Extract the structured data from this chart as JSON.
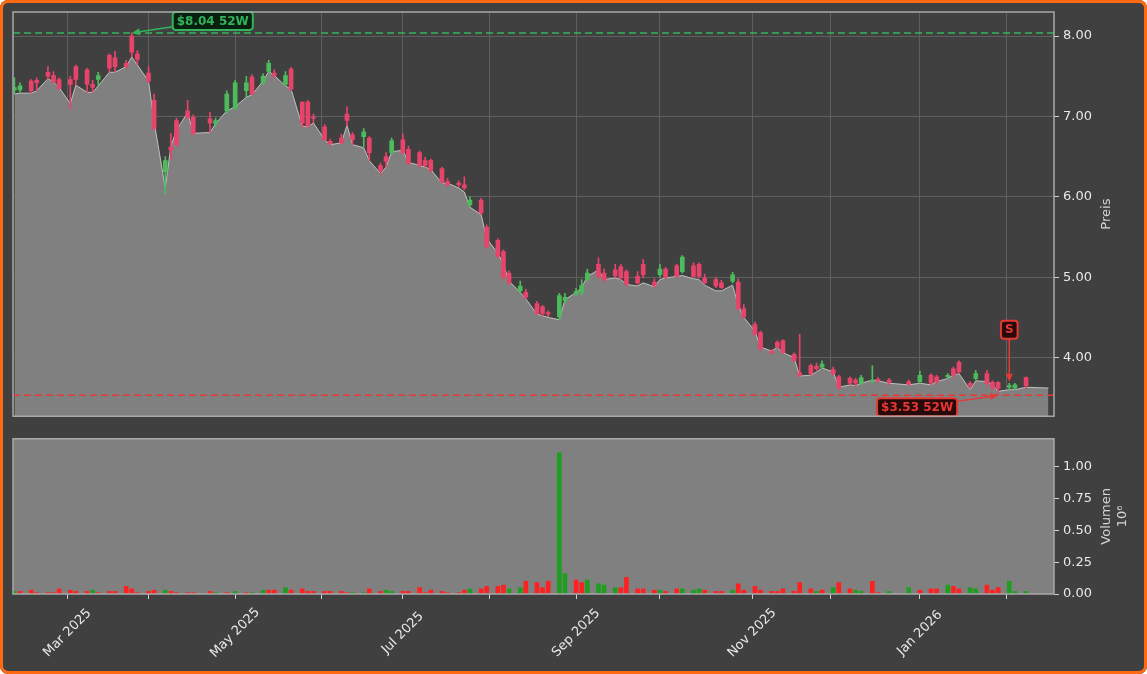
{
  "chart_data": [
    {
      "type": "candlestick",
      "ylabel": "Preis",
      "xlim": [
        "2025-02-11T12:00",
        "2026-02-19"
      ],
      "xticks": [
        {
          "value": "2025-03-03",
          "label": null
        },
        {
          "value": "2025-04-01",
          "label": null
        },
        {
          "value": "2025-05-02",
          "label": null
        },
        {
          "value": "2025-06-02",
          "label": null
        },
        {
          "value": "2025-07-01",
          "label": null
        },
        {
          "value": "2025-08-01",
          "label": null
        },
        {
          "value": "2025-09-01",
          "label": null
        },
        {
          "value": "2025-10-01",
          "label": null
        },
        {
          "value": "2025-11-03",
          "label": null
        },
        {
          "value": "2025-12-01",
          "label": null
        },
        {
          "value": "2026-01-02",
          "label": null
        },
        {
          "value": "2026-02-02",
          "label": null
        }
      ],
      "ylim": [
        3.27,
        8.3
      ],
      "yticks": [
        {
          "value": 4,
          "label": "4.00"
        },
        {
          "value": 5,
          "label": "5.00"
        },
        {
          "value": 6,
          "label": "6.00"
        },
        {
          "value": 7,
          "label": "7.00"
        },
        {
          "value": 8,
          "label": "8.00"
        }
      ],
      "grid": true,
      "tick_labels": "y",
      "ref_lines": [
        {
          "axis": "y",
          "value": 8.04,
          "color": "#33b35a",
          "line_style": "dashed"
        },
        {
          "axis": "y",
          "value": 3.53,
          "color": "#e53935",
          "line_style": "dashed"
        }
      ],
      "annotations": [
        {
          "text": "$8.04 52W",
          "x": "2025-03-26",
          "y": 8.04
        },
        {
          "text": "$3.53 52W",
          "x": "2026-01-30",
          "y": 3.53
        },
        {
          "text": "S",
          "x": "2026-02-03",
          "y": 3.7
        }
      ],
      "series": [
        {
          "type": "area",
          "color": "#808080",
          "x": [
            "2025-02-12",
            "2025-02-14",
            "2025-02-18",
            "2025-02-20",
            "2025-02-24",
            "2025-02-26",
            "2025-02-28",
            "2025-03-04",
            "2025-03-06",
            "2025-03-10",
            "2025-03-12",
            "2025-03-14",
            "2025-03-18",
            "2025-03-20",
            "2025-03-24",
            "2025-03-26",
            "2025-03-28",
            "2025-04-01",
            "2025-04-03",
            "2025-04-07",
            "2025-04-09",
            "2025-04-11",
            "2025-04-15",
            "2025-04-17",
            "2025-04-23",
            "2025-04-25",
            "2025-04-29",
            "2025-05-02",
            "2025-05-06",
            "2025-05-08",
            "2025-05-12",
            "2025-05-14",
            "2025-05-16",
            "2025-05-20",
            "2025-05-22",
            "2025-05-26",
            "2025-05-28",
            "2025-05-30",
            "2025-06-03",
            "2025-06-05",
            "2025-06-09",
            "2025-06-11",
            "2025-06-13",
            "2025-06-17",
            "2025-06-19",
            "2025-06-23",
            "2025-06-25",
            "2025-06-27",
            "2025-07-01",
            "2025-07-03",
            "2025-07-07",
            "2025-07-09",
            "2025-07-11",
            "2025-07-15",
            "2025-07-17",
            "2025-07-21",
            "2025-07-23",
            "2025-07-25",
            "2025-07-29",
            "2025-07-31",
            "2025-08-04",
            "2025-08-06",
            "2025-08-08",
            "2025-08-12",
            "2025-08-14",
            "2025-08-18",
            "2025-08-20",
            "2025-08-22",
            "2025-08-26",
            "2025-08-28",
            "2025-09-01",
            "2025-09-03",
            "2025-09-05",
            "2025-09-09",
            "2025-09-11",
            "2025-09-15",
            "2025-09-17",
            "2025-09-19",
            "2025-09-23",
            "2025-09-25",
            "2025-09-29",
            "2025-10-01",
            "2025-10-03",
            "2025-10-07",
            "2025-10-09",
            "2025-10-13",
            "2025-10-15",
            "2025-10-17",
            "2025-10-21",
            "2025-10-23",
            "2025-10-27",
            "2025-10-29",
            "2025-10-31",
            "2025-11-04",
            "2025-11-06",
            "2025-11-10",
            "2025-11-12",
            "2025-11-14",
            "2025-11-18",
            "2025-11-20",
            "2025-11-24",
            "2025-11-26",
            "2025-11-28",
            "2025-12-02",
            "2025-12-04",
            "2025-12-08",
            "2025-12-10",
            "2025-12-12",
            "2025-12-16",
            "2025-12-18",
            "2025-12-22",
            "2025-12-29",
            "2026-01-02",
            "2026-01-06",
            "2026-01-08",
            "2026-01-12",
            "2026-01-14",
            "2026-01-16",
            "2026-01-20",
            "2026-01-22",
            "2026-01-26",
            "2026-01-28",
            "2026-01-30",
            "2026-02-03",
            "2026-02-05",
            "2026-02-09",
            "2026-02-17"
          ],
          "values": [
            7.28,
            7.29,
            7.29,
            7.32,
            7.47,
            7.43,
            7.36,
            7.16,
            7.39,
            7.3,
            7.3,
            7.38,
            7.55,
            7.55,
            7.62,
            7.74,
            7.64,
            7.44,
            6.93,
            6.11,
            6.63,
            6.83,
            7.05,
            6.79,
            6.8,
            6.91,
            7.07,
            7.12,
            7.24,
            7.27,
            7.44,
            7.56,
            7.51,
            7.38,
            7.34,
            6.88,
            6.87,
            6.92,
            6.71,
            6.65,
            6.67,
            6.89,
            6.65,
            6.61,
            6.45,
            6.29,
            6.37,
            6.56,
            6.58,
            6.43,
            6.39,
            6.37,
            6.34,
            6.17,
            6.17,
            6.11,
            6.06,
            5.87,
            5.78,
            5.48,
            5.3,
            5.16,
            4.95,
            4.81,
            4.73,
            4.54,
            4.52,
            4.5,
            4.47,
            4.72,
            4.81,
            4.87,
            5.01,
            5.09,
            4.97,
            4.99,
            4.97,
            4.91,
            4.89,
            4.93,
            4.88,
            4.97,
            4.99,
            5.01,
            5.02,
            4.98,
            4.97,
            4.9,
            4.83,
            4.83,
            4.9,
            4.65,
            4.5,
            4.33,
            4.13,
            4.08,
            4.13,
            4.06,
            4,
            3.77,
            3.78,
            3.82,
            3.87,
            3.82,
            3.63,
            3.66,
            3.65,
            3.68,
            3.72,
            3.71,
            3.68,
            3.66,
            3.68,
            3.66,
            3.7,
            3.74,
            3.78,
            3.8,
            3.6,
            3.71,
            3.7,
            3.66,
            3.58,
            3.6,
            3.6,
            3.63,
            3.62
          ]
        },
        {
          "x": [
            "2025-02-12",
            "2025-02-14",
            "2025-02-18",
            "2025-02-20",
            "2025-02-24",
            "2025-02-26",
            "2025-02-28",
            "2025-03-04",
            "2025-03-06",
            "2025-03-10",
            "2025-03-12",
            "2025-03-14",
            "2025-03-18",
            "2025-03-20",
            "2025-03-24",
            "2025-03-26",
            "2025-03-28",
            "2025-04-01",
            "2025-04-03",
            "2025-04-07",
            "2025-04-09",
            "2025-04-11",
            "2025-04-15",
            "2025-04-17",
            "2025-04-23",
            "2025-04-25",
            "2025-04-29",
            "2025-05-02",
            "2025-05-06",
            "2025-05-08",
            "2025-05-12",
            "2025-05-14",
            "2025-05-16",
            "2025-05-20",
            "2025-05-22",
            "2025-05-26",
            "2025-05-28",
            "2025-05-30",
            "2025-06-03",
            "2025-06-05",
            "2025-06-09",
            "2025-06-11",
            "2025-06-13",
            "2025-06-17",
            "2025-06-19",
            "2025-06-23",
            "2025-06-25",
            "2025-06-27",
            "2025-07-01",
            "2025-07-03",
            "2025-07-07",
            "2025-07-09",
            "2025-07-11",
            "2025-07-15",
            "2025-07-17",
            "2025-07-21",
            "2025-07-23",
            "2025-07-25",
            "2025-07-29",
            "2025-07-31",
            "2025-08-04",
            "2025-08-06",
            "2025-08-08",
            "2025-08-12",
            "2025-08-14",
            "2025-08-18",
            "2025-08-20",
            "2025-08-22",
            "2025-08-26",
            "2025-08-28",
            "2025-09-01",
            "2025-09-03",
            "2025-09-05",
            "2025-09-09",
            "2025-09-11",
            "2025-09-15",
            "2025-09-17",
            "2025-09-19",
            "2025-09-23",
            "2025-09-25",
            "2025-09-29",
            "2025-10-01",
            "2025-10-03",
            "2025-10-07",
            "2025-10-09",
            "2025-10-13",
            "2025-10-15",
            "2025-10-17",
            "2025-10-21",
            "2025-10-23",
            "2025-10-27",
            "2025-10-29",
            "2025-10-31",
            "2025-11-04",
            "2025-11-06",
            "2025-11-10",
            "2025-11-12",
            "2025-11-14",
            "2025-11-18",
            "2025-11-20",
            "2025-11-24",
            "2025-11-26",
            "2025-11-28",
            "2025-12-02",
            "2025-12-04",
            "2025-12-08",
            "2025-12-10",
            "2025-12-12",
            "2025-12-16",
            "2025-12-18",
            "2025-12-22",
            "2025-12-29",
            "2026-01-02",
            "2026-01-06",
            "2026-01-08",
            "2026-01-12",
            "2026-01-14",
            "2026-01-16",
            "2026-01-20",
            "2026-01-22",
            "2026-01-26",
            "2026-01-28",
            "2026-01-30",
            "2026-02-03",
            "2026-02-05",
            "2026-02-09"
          ],
          "ohlc": [
            [
              7.33,
              7.48,
              7.28,
              7.36
            ],
            [
              7.33,
              7.42,
              7.29,
              7.38
            ],
            [
              7.44,
              7.46,
              7.29,
              7.32
            ],
            [
              7.45,
              7.48,
              7.32,
              7.42
            ],
            [
              7.55,
              7.62,
              7.46,
              7.5
            ],
            [
              7.51,
              7.56,
              7.42,
              7.43
            ],
            [
              7.46,
              7.48,
              7.34,
              7.35
            ],
            [
              7.46,
              7.5,
              7.09,
              7.4
            ],
            [
              7.62,
              7.64,
              7.39,
              7.46
            ],
            [
              7.58,
              7.6,
              7.3,
              7.4
            ],
            [
              7.4,
              7.45,
              7.3,
              7.36
            ],
            [
              7.46,
              7.55,
              7.38,
              7.51
            ],
            [
              7.76,
              7.78,
              7.55,
              7.6
            ],
            [
              7.73,
              7.81,
              7.55,
              7.62
            ],
            [
              7.66,
              7.7,
              7.6,
              7.62
            ],
            [
              8,
              8.04,
              7.74,
              7.8
            ],
            [
              7.78,
              7.82,
              7.64,
              7.71
            ],
            [
              7.54,
              7.62,
              7.42,
              7.44
            ],
            [
              7.2,
              7.28,
              6.83,
              6.85
            ],
            [
              6.31,
              6.5,
              6.04,
              6.45
            ],
            [
              6.62,
              6.79,
              6.47,
              6.58
            ],
            [
              6.95,
              6.98,
              6.63,
              6.65
            ],
            [
              7.07,
              7.2,
              6.97,
              6.99
            ],
            [
              6.99,
              7.02,
              6.77,
              6.79
            ],
            [
              6.97,
              7.05,
              6.8,
              6.92
            ],
            [
              6.91,
              6.98,
              6.88,
              6.95
            ],
            [
              7.07,
              7.32,
              7.04,
              7.28
            ],
            [
              7.1,
              7.45,
              7.08,
              7.42
            ],
            [
              7.32,
              7.5,
              7.24,
              7.42
            ],
            [
              7.49,
              7.52,
              7.27,
              7.28
            ],
            [
              7.42,
              7.53,
              7.4,
              7.5
            ],
            [
              7.56,
              7.7,
              7.54,
              7.66
            ],
            [
              7.54,
              7.58,
              7.48,
              7.51
            ],
            [
              7.4,
              7.56,
              7.38,
              7.51
            ],
            [
              7.59,
              7.61,
              7.32,
              7.34
            ],
            [
              7.18,
              7.18,
              6.87,
              6.92
            ],
            [
              7.18,
              7.2,
              6.87,
              6.88
            ],
            [
              6.99,
              7.03,
              6.92,
              6.98
            ],
            [
              6.87,
              6.9,
              6.7,
              6.71
            ],
            [
              6.69,
              6.72,
              6.64,
              6.66
            ],
            [
              6.73,
              6.78,
              6.66,
              6.67
            ],
            [
              7.03,
              7.12,
              6.88,
              6.95
            ],
            [
              6.77,
              6.8,
              6.65,
              6.71
            ],
            [
              6.75,
              6.85,
              6.62,
              6.81
            ],
            [
              6.73,
              6.75,
              6.45,
              6.55
            ],
            [
              6.39,
              6.42,
              6.28,
              6.33
            ],
            [
              6.5,
              6.55,
              6.37,
              6.44
            ],
            [
              6.55,
              6.73,
              6.53,
              6.7
            ],
            [
              6.71,
              6.78,
              6.53,
              6.55
            ],
            [
              6.59,
              6.63,
              6.4,
              6.42
            ],
            [
              6.55,
              6.57,
              6.37,
              6.39
            ],
            [
              6.45,
              6.49,
              6.37,
              6.39
            ],
            [
              6.45,
              6.47,
              6.31,
              6.33
            ],
            [
              6.35,
              6.37,
              6.17,
              6.19
            ],
            [
              6.19,
              6.23,
              6.13,
              6.15
            ],
            [
              6.17,
              6.2,
              6.12,
              6.15
            ],
            [
              6.15,
              6.25,
              6.09,
              6.11
            ],
            [
              5.9,
              6,
              5.88,
              5.96
            ],
            [
              5.96,
              5.98,
              5.78,
              5.8
            ],
            [
              5.62,
              5.65,
              5.36,
              5.38
            ],
            [
              5.46,
              5.48,
              5.24,
              5.26
            ],
            [
              5.32,
              5.34,
              4.98,
              5
            ],
            [
              5.05,
              5.08,
              4.91,
              4.93
            ],
            [
              4.83,
              4.95,
              4.81,
              4.89
            ],
            [
              4.81,
              4.85,
              4.73,
              4.75
            ],
            [
              4.67,
              4.7,
              4.53,
              4.55
            ],
            [
              4.63,
              4.65,
              4.52,
              4.55
            ],
            [
              4.56,
              4.58,
              4.51,
              4.54
            ],
            [
              4.51,
              4.8,
              4.47,
              4.77
            ],
            [
              4.71,
              4.8,
              4.68,
              4.75
            ],
            [
              4.79,
              4.86,
              4.77,
              4.82
            ],
            [
              4.81,
              4.97,
              4.78,
              4.9
            ],
            [
              4.97,
              5.1,
              4.95,
              5.05
            ],
            [
              5.16,
              5.24,
              4.99,
              5.01
            ],
            [
              5.05,
              5.1,
              4.94,
              4.97
            ],
            [
              5.09,
              5.16,
              5,
              5.02
            ],
            [
              5.13,
              5.16,
              4.97,
              4.99
            ],
            [
              5.07,
              5.09,
              4.89,
              4.91
            ],
            [
              5.01,
              5.07,
              4.91,
              4.93
            ],
            [
              5.16,
              5.22,
              4.99,
              5.03
            ],
            [
              4.94,
              4.98,
              4.87,
              4.9
            ],
            [
              5.03,
              5.16,
              5,
              5.1
            ],
            [
              5.1,
              5.12,
              4.98,
              5
            ],
            [
              5.14,
              5.16,
              5,
              5.01
            ],
            [
              5.07,
              5.27,
              5.05,
              5.25
            ],
            [
              5.14,
              5.18,
              5,
              5.01
            ],
            [
              5.16,
              5.18,
              4.99,
              5.01
            ],
            [
              4.99,
              5.04,
              4.92,
              4.93
            ],
            [
              4.97,
              5,
              4.87,
              4.89
            ],
            [
              4.93,
              4.96,
              4.86,
              4.87
            ],
            [
              4.95,
              5.06,
              4.93,
              5.03
            ],
            [
              4.94,
              4.98,
              4.59,
              4.61
            ],
            [
              4.61,
              4.66,
              4.49,
              4.51
            ],
            [
              4.41,
              4.44,
              4.27,
              4.29
            ],
            [
              4.31,
              4.33,
              4.09,
              4.11
            ],
            [
              4.08,
              4.1,
              4.04,
              4.06
            ],
            [
              4.19,
              4.21,
              4.11,
              4.13
            ],
            [
              4.21,
              4.22,
              4.05,
              4.06
            ],
            [
              4.04,
              4.06,
              3.95,
              3.96
            ],
            [
              3.81,
              4.29,
              3.76,
              3.78
            ],
            [
              3.9,
              3.92,
              3.78,
              3.8
            ],
            [
              3.89,
              3.93,
              3.84,
              3.86
            ],
            [
              3.88,
              3.96,
              3.86,
              3.92
            ],
            [
              3.85,
              3.88,
              3.78,
              3.8
            ],
            [
              3.76,
              3.78,
              3.61,
              3.62
            ],
            [
              3.74,
              3.76,
              3.66,
              3.68
            ],
            [
              3.72,
              3.74,
              3.64,
              3.68
            ],
            [
              3.68,
              3.78,
              3.66,
              3.75
            ],
            [
              3.7,
              3.9,
              3.68,
              3.71
            ],
            [
              3.73,
              3.75,
              3.69,
              3.71
            ],
            [
              3.72,
              3.74,
              3.66,
              3.69
            ],
            [
              3.7,
              3.72,
              3.65,
              3.67
            ],
            [
              3.7,
              3.83,
              3.68,
              3.78
            ],
            [
              3.78,
              3.8,
              3.66,
              3.68
            ],
            [
              3.76,
              3.78,
              3.68,
              3.7
            ],
            [
              3.76,
              3.8,
              3.74,
              3.78
            ],
            [
              3.86,
              3.88,
              3.76,
              3.78
            ],
            [
              3.94,
              3.96,
              3.8,
              3.82
            ],
            [
              3.68,
              3.7,
              3.62,
              3.65
            ],
            [
              3.74,
              3.84,
              3.72,
              3.8
            ],
            [
              3.8,
              3.84,
              3.66,
              3.68
            ],
            [
              3.69,
              3.71,
              3.6,
              3.62
            ],
            [
              3.69,
              3.7,
              3.53,
              3.62
            ],
            [
              3.63,
              3.68,
              3.6,
              3.65
            ],
            [
              3.62,
              3.68,
              3.6,
              3.66
            ],
            [
              3.75,
              3.76,
              3.62,
              3.65
            ]
          ],
          "colors": [
            "#4cbb5c",
            "#4cbb5c",
            "#e8436a",
            "#e8436a",
            "#e8436a",
            "#e8436a",
            "#e8436a",
            "#e8436a",
            "#e8436a",
            "#e8436a",
            "#e8436a",
            "#4cbb5c",
            "#e8436a",
            "#e8436a",
            "#e8436a",
            "#e8436a",
            "#e8436a",
            "#e8436a",
            "#e8436a",
            "#4cbb5c",
            "#e8436a",
            "#e8436a",
            "#e8436a",
            "#e8436a",
            "#e8436a",
            "#4cbb5c",
            "#4cbb5c",
            "#4cbb5c",
            "#4cbb5c",
            "#e8436a",
            "#4cbb5c",
            "#4cbb5c",
            "#e8436a",
            "#4cbb5c",
            "#e8436a",
            "#e8436a",
            "#e8436a",
            "#e8436a",
            "#e8436a",
            "#e8436a",
            "#e8436a",
            "#e8436a",
            "#e8436a",
            "#4cbb5c",
            "#e8436a",
            "#e8436a",
            "#e8436a",
            "#4cbb5c",
            "#e8436a",
            "#e8436a",
            "#e8436a",
            "#e8436a",
            "#e8436a",
            "#e8436a",
            "#e8436a",
            "#e8436a",
            "#e8436a",
            "#4cbb5c",
            "#e8436a",
            "#e8436a",
            "#e8436a",
            "#e8436a",
            "#e8436a",
            "#4cbb5c",
            "#e8436a",
            "#e8436a",
            "#e8436a",
            "#e8436a",
            "#4cbb5c",
            "#4cbb5c",
            "#4cbb5c",
            "#4cbb5c",
            "#4cbb5c",
            "#e8436a",
            "#e8436a",
            "#e8436a",
            "#e8436a",
            "#e8436a",
            "#e8436a",
            "#e8436a",
            "#e8436a",
            "#4cbb5c",
            "#e8436a",
            "#e8436a",
            "#4cbb5c",
            "#e8436a",
            "#e8436a",
            "#e8436a",
            "#e8436a",
            "#e8436a",
            "#4cbb5c",
            "#e8436a",
            "#e8436a",
            "#e8436a",
            "#e8436a",
            "#e8436a",
            "#e8436a",
            "#e8436a",
            "#e8436a",
            "#e8436a",
            "#e8436a",
            "#e8436a",
            "#4cbb5c",
            "#e8436a",
            "#e8436a",
            "#e8436a",
            "#e8436a",
            "#4cbb5c",
            "#4cbb5c",
            "#e8436a",
            "#e8436a",
            "#e8436a",
            "#4cbb5c",
            "#e8436a",
            "#e8436a",
            "#4cbb5c",
            "#e8436a",
            "#e8436a",
            "#e8436a",
            "#4cbb5c",
            "#e8436a",
            "#e8436a",
            "#e8436a",
            "#4cbb5c",
            "#4cbb5c",
            "#e8436a"
          ]
        }
      ]
    },
    {
      "type": "bar",
      "ylabel": "Volumen\n10⁶",
      "xlim": [
        "2025-02-11T12:00",
        "2026-02-19"
      ],
      "xticks": [
        {
          "value": "2025-03-03",
          "label": "Mar 2025"
        },
        {
          "value": "2025-04-01",
          "label": null
        },
        {
          "value": "2025-05-02",
          "label": "May 2025"
        },
        {
          "value": "2025-06-02",
          "label": null
        },
        {
          "value": "2025-07-01",
          "label": "Jul 2025"
        },
        {
          "value": "2025-08-01",
          "label": null
        },
        {
          "value": "2025-09-01",
          "label": "Sep 2025"
        },
        {
          "value": "2025-10-01",
          "label": null
        },
        {
          "value": "2025-11-03",
          "label": "Nov 2025"
        },
        {
          "value": "2025-12-01",
          "label": null
        },
        {
          "value": "2026-01-02",
          "label": "Jan 2026"
        },
        {
          "value": "2026-02-02",
          "label": null
        }
      ],
      "ylim": [
        0,
        1.22
      ],
      "yticks": [
        {
          "value": 0,
          "label": "0.00"
        },
        {
          "value": 0.25,
          "label": "0.25"
        },
        {
          "value": 0.5,
          "label": "0.50"
        },
        {
          "value": 0.75,
          "label": "0.75"
        },
        {
          "value": 1,
          "label": "1.00"
        }
      ],
      "x": [
        "2025-02-12",
        "2025-02-14",
        "2025-02-18",
        "2025-02-20",
        "2025-02-24",
        "2025-02-26",
        "2025-02-28",
        "2025-03-04",
        "2025-03-06",
        "2025-03-10",
        "2025-03-12",
        "2025-03-14",
        "2025-03-18",
        "2025-03-20",
        "2025-03-24",
        "2025-03-26",
        "2025-03-28",
        "2025-04-01",
        "2025-04-03",
        "2025-04-07",
        "2025-04-09",
        "2025-04-11",
        "2025-04-15",
        "2025-04-17",
        "2025-04-23",
        "2025-04-25",
        "2025-04-29",
        "2025-05-02",
        "2025-05-06",
        "2025-05-08",
        "2025-05-12",
        "2025-05-14",
        "2025-05-16",
        "2025-05-20",
        "2025-05-22",
        "2025-05-26",
        "2025-05-28",
        "2025-05-30",
        "2025-06-03",
        "2025-06-05",
        "2025-06-09",
        "2025-06-11",
        "2025-06-13",
        "2025-06-17",
        "2025-06-19",
        "2025-06-23",
        "2025-06-25",
        "2025-06-27",
        "2025-07-01",
        "2025-07-03",
        "2025-07-07",
        "2025-07-09",
        "2025-07-11",
        "2025-07-15",
        "2025-07-17",
        "2025-07-21",
        "2025-07-23",
        "2025-07-25",
        "2025-07-29",
        "2025-07-31",
        "2025-08-04",
        "2025-08-06",
        "2025-08-08",
        "2025-08-12",
        "2025-08-14",
        "2025-08-18",
        "2025-08-20",
        "2025-08-22",
        "2025-08-26",
        "2025-08-28",
        "2025-09-01",
        "2025-09-03",
        "2025-09-05",
        "2025-09-09",
        "2025-09-11",
        "2025-09-15",
        "2025-09-17",
        "2025-09-19",
        "2025-09-23",
        "2025-09-25",
        "2025-09-29",
        "2025-10-01",
        "2025-10-03",
        "2025-10-07",
        "2025-10-09",
        "2025-10-13",
        "2025-10-15",
        "2025-10-17",
        "2025-10-21",
        "2025-10-23",
        "2025-10-27",
        "2025-10-29",
        "2025-10-31",
        "2025-11-04",
        "2025-11-06",
        "2025-11-10",
        "2025-11-12",
        "2025-11-14",
        "2025-11-18",
        "2025-11-20",
        "2025-11-24",
        "2025-11-26",
        "2025-11-28",
        "2025-12-02",
        "2025-12-04",
        "2025-12-08",
        "2025-12-10",
        "2025-12-12",
        "2025-12-16",
        "2025-12-18",
        "2025-12-22",
        "2025-12-29",
        "2026-01-02",
        "2026-01-06",
        "2026-01-08",
        "2026-01-12",
        "2026-01-14",
        "2026-01-16",
        "2026-01-20",
        "2026-01-22",
        "2026-01-26",
        "2026-01-28",
        "2026-01-30",
        "2026-02-03",
        "2026-02-05",
        "2026-02-09"
      ],
      "values": [
        0.02,
        0.02,
        0.03,
        0.01,
        0.01,
        0.01,
        0.04,
        0.03,
        0.02,
        0.02,
        0.03,
        0.01,
        0.02,
        0.02,
        0.06,
        0.04,
        0.01,
        0.02,
        0.03,
        0.03,
        0.02,
        0.01,
        0.01,
        0.01,
        0.02,
        0.01,
        0.01,
        0.02,
        0.01,
        0.01,
        0.03,
        0.03,
        0.03,
        0.05,
        0.03,
        0.04,
        0.02,
        0.02,
        0.02,
        0.02,
        0.02,
        0.01,
        0.01,
        0.01,
        0.04,
        0.02,
        0.03,
        0.02,
        0.02,
        0.02,
        0.05,
        0.01,
        0.03,
        0.02,
        0.01,
        0.01,
        0.03,
        0.04,
        0.04,
        0.06,
        0.06,
        0.07,
        0.04,
        0.05,
        0.1,
        0.09,
        0.05,
        0.1,
        1.11,
        0.16,
        0.11,
        0.09,
        0.11,
        0.08,
        0.07,
        0.05,
        0.05,
        0.13,
        0.04,
        0.04,
        0.03,
        0.03,
        0.02,
        0.04,
        0.04,
        0.03,
        0.04,
        0.03,
        0.02,
        0.02,
        0.03,
        0.08,
        0.03,
        0.06,
        0.03,
        0.02,
        0.02,
        0.04,
        0.02,
        0.09,
        0.04,
        0.02,
        0.03,
        0.05,
        0.09,
        0.04,
        0.03,
        0.02,
        0.1,
        0.01,
        0.02,
        0.05,
        0.03,
        0.04,
        0.04,
        0.07,
        0.06,
        0.04,
        0.05,
        0.04,
        0.07,
        0.03,
        0.05,
        0.1,
        0.02,
        0.02
      ],
      "colors": [
        "#1f9e1f",
        "#ff2020",
        "#ff2020",
        "#ff2020",
        "#ff2020",
        "#ff2020",
        "#ff2020",
        "#ff2020",
        "#ff2020",
        "#ff2020",
        "#1f9e1f",
        "#ff2020",
        "#ff2020",
        "#ff2020",
        "#ff2020",
        "#ff2020",
        "#ff2020",
        "#ff2020",
        "#ff2020",
        "#1f9e1f",
        "#ff2020",
        "#ff2020",
        "#ff2020",
        "#ff2020",
        "#ff2020",
        "#1f9e1f",
        "#ff2020",
        "#1f9e1f",
        "#ff2020",
        "#1f9e1f",
        "#1f9e1f",
        "#ff2020",
        "#ff2020",
        "#1f9e1f",
        "#ff2020",
        "#ff2020",
        "#ff2020",
        "#ff2020",
        "#ff2020",
        "#ff2020",
        "#ff2020",
        "#ff2020",
        "#1f9e1f",
        "#1f9e1f",
        "#ff2020",
        "#ff2020",
        "#1f9e1f",
        "#1f9e1f",
        "#ff2020",
        "#ff2020",
        "#ff2020",
        "#ff2020",
        "#ff2020",
        "#ff2020",
        "#ff2020",
        "#ff2020",
        "#ff2020",
        "#1f9e1f",
        "#ff2020",
        "#ff2020",
        "#ff2020",
        "#ff2020",
        "#1f9e1f",
        "#1f9e1f",
        "#ff2020",
        "#ff2020",
        "#ff2020",
        "#ff2020",
        "#1f9e1f",
        "#1f9e1f",
        "#ff2020",
        "#ff2020",
        "#1f9e1f",
        "#1f9e1f",
        "#1f9e1f",
        "#1f9e1f",
        "#ff2020",
        "#ff2020",
        "#ff2020",
        "#ff2020",
        "#ff2020",
        "#1f9e1f",
        "#ff2020",
        "#ff2020",
        "#1f9e1f",
        "#1f9e1f",
        "#1f9e1f",
        "#ff2020",
        "#ff2020",
        "#ff2020",
        "#1f9e1f",
        "#ff2020",
        "#ff2020",
        "#ff2020",
        "#ff2020",
        "#ff2020",
        "#ff2020",
        "#ff2020",
        "#ff2020",
        "#ff2020",
        "#ff2020",
        "#1f9e1f",
        "#ff2020",
        "#1f9e1f",
        "#ff2020",
        "#ff2020",
        "#1f9e1f",
        "#1f9e1f",
        "#ff2020",
        "#ff2020",
        "#1f9e1f",
        "#1f9e1f",
        "#ff2020",
        "#ff2020",
        "#ff2020",
        "#1f9e1f",
        "#ff2020",
        "#ff2020",
        "#1f9e1f",
        "#1f9e1f",
        "#ff2020",
        "#ff2020",
        "#ff2020",
        "#1f9e1f",
        "#1f9e1f",
        "#1f9e1f"
      ]
    }
  ]
}
